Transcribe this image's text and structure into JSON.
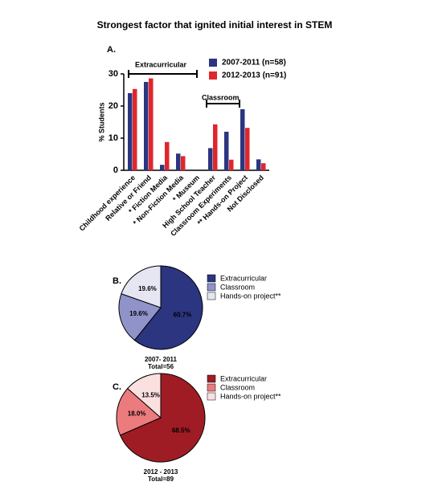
{
  "title": "Strongest factor that ignited initial interest in STEM",
  "chart_data": [
    {
      "type": "bar",
      "panel": "A.",
      "ylabel": "% Students",
      "categories": [
        "Childhood experience",
        "Relative or Friend",
        "* Fiction Media",
        "* Non-Fiction Media",
        "* Museum",
        "High School Teacher",
        "Classroom Experiments",
        "** Hands-on Project",
        "Not Disclosed"
      ],
      "series": [
        {
          "name": "2007-2011 (n=58)",
          "color": "#2b3580",
          "values": [
            24,
            27.5,
            1.7,
            5.2,
            0,
            6.9,
            12,
            19,
            3.4
          ]
        },
        {
          "name": "2012-2013 (n=91)",
          "color": "#e0262d",
          "values": [
            25.3,
            28.6,
            8.8,
            4.4,
            0,
            14.3,
            3.3,
            13.2,
            2.2
          ]
        }
      ],
      "ylim": [
        0,
        30
      ],
      "yticks": [
        0,
        10,
        20,
        30
      ],
      "annotations": [
        "Extracurricular",
        "Classroom"
      ]
    },
    {
      "type": "pie",
      "panel": "B.",
      "caption": [
        "2007- 2011",
        "Total=56"
      ],
      "categories": [
        "Extracurricular",
        "Classroom",
        "Hands-on project**"
      ],
      "values": [
        60.7,
        19.6,
        19.6
      ],
      "value_labels": [
        "60.7%",
        "19.6%",
        "19.6%"
      ],
      "colors": [
        "#2b3580",
        "#8f93c9",
        "#e6e6f2"
      ]
    },
    {
      "type": "pie",
      "panel": "C.",
      "caption": [
        "2012 - 2013",
        "Total=89"
      ],
      "categories": [
        "Extracurricular",
        "Classroom",
        "Hands-on project**"
      ],
      "values": [
        68.5,
        18.0,
        13.5
      ],
      "value_labels": [
        "68.5%",
        "18.0%",
        "13.5%"
      ],
      "colors": [
        "#a01c24",
        "#ec7b7e",
        "#fbe0e0"
      ]
    }
  ]
}
